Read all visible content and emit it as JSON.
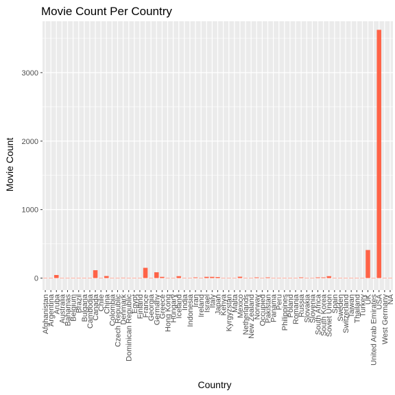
{
  "chart_data": {
    "type": "bar",
    "title": "Movie Count Per Country",
    "xlabel": "Country",
    "ylabel": "Movie Count",
    "ylim": [
      -175,
      3750
    ],
    "yticks": [
      0,
      1000,
      2000,
      3000
    ],
    "grid": true,
    "legend": "none",
    "bar_color": "#ff6347",
    "panel_color": "#ebebeb",
    "categories": [
      "Afghanistan",
      "Argentina",
      "Aruba",
      "Australia",
      "Bahamas",
      "Belgium",
      "Brazil",
      "Bulgaria",
      "Cambodia",
      "Canada",
      "Chile",
      "China",
      "Colombia",
      "Czech Republic",
      "Denmark",
      "Dominican Republic",
      "Egypt",
      "Finland",
      "France",
      "Georgia",
      "Germany",
      "Greece",
      "Hong Kong",
      "Hungary",
      "Iceland",
      "India",
      "Indonesia",
      "Iran",
      "Ireland",
      "Israel",
      "Italy",
      "Japan",
      "Kenya",
      "Kyrgyzstan",
      "Malta",
      "Mexico",
      "Netherlands",
      "New Zealand",
      "Norway",
      "Occupied",
      "Pakistan",
      "Panama",
      "Peru",
      "Philippines",
      "Poland",
      "Romania",
      "Russia",
      "Slovakia",
      "Slovenia",
      "South Africa",
      "South Korea",
      "Soviet Union",
      "Spain",
      "Sweden",
      "Switzerland",
      "Taiwan",
      "Thailand",
      "Turkey",
      "UK",
      "United Arab Emirates",
      "USA",
      "West Germany",
      "NA"
    ],
    "values": [
      1,
      4,
      45,
      1,
      1,
      5,
      1,
      1,
      1,
      115,
      1,
      30,
      1,
      1,
      6,
      1,
      1,
      1,
      150,
      1,
      85,
      18,
      1,
      1,
      28,
      1,
      1,
      10,
      1,
      18,
      18,
      15,
      1,
      1,
      1,
      20,
      1,
      1,
      10,
      1,
      10,
      1,
      1,
      1,
      1,
      1,
      10,
      1,
      1,
      10,
      10,
      28,
      1,
      1,
      1,
      1,
      1,
      1,
      410,
      1,
      3625,
      1,
      1
    ]
  }
}
